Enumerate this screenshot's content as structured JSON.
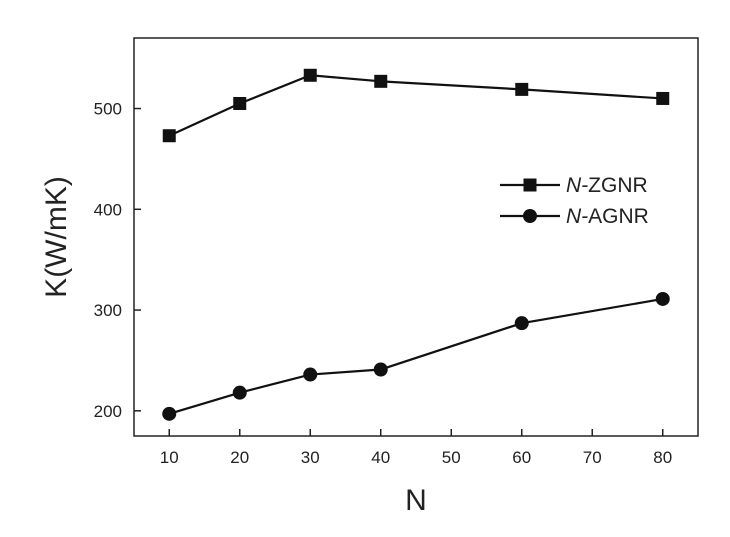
{
  "chart_data": {
    "type": "line",
    "title": "",
    "xlabel": "N",
    "ylabel": "K(W/mK)",
    "xlim": [
      5,
      85
    ],
    "ylim": [
      175,
      570
    ],
    "xticks": [
      10,
      20,
      30,
      40,
      50,
      60,
      70,
      80
    ],
    "yticks": [
      200,
      300,
      400,
      500
    ],
    "grid": false,
    "legend_position": "right",
    "series": [
      {
        "name": "ZGNR",
        "name_prefix": "N-",
        "marker": "square",
        "color": "#111111",
        "x": [
          10,
          20,
          30,
          40,
          60,
          80
        ],
        "y": [
          473,
          505,
          533,
          527,
          519,
          510
        ]
      },
      {
        "name": "AGNR",
        "name_prefix": "N-",
        "marker": "circle",
        "color": "#111111",
        "x": [
          10,
          20,
          30,
          40,
          60,
          80
        ],
        "y": [
          197,
          218,
          236,
          241,
          287,
          311
        ]
      }
    ]
  }
}
